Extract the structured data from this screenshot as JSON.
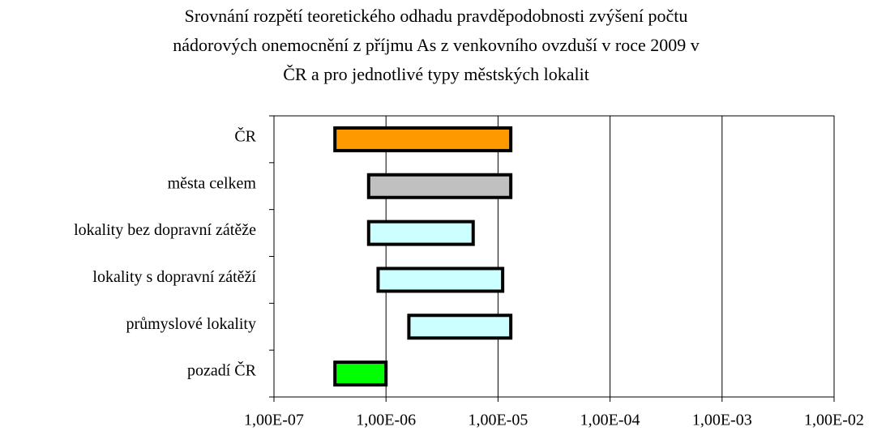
{
  "chart_data": {
    "type": "range-bar",
    "title": [
      "Srovnání rozpětí teoretického odhadu pravděpodobnosti zvýšení počtu",
      "nádorových onemocnění z příjmu  As z venkovního ovzduší v roce 2009 v",
      "ČR a pro jednotlivé typy městských lokalit"
    ],
    "categories": [
      "ČR",
      "města celkem",
      "lokality bez dopravní zátěže",
      "lokality s dopravní zátěží",
      "průmyslové lokality",
      "pozadí ČR"
    ],
    "low": [
      3.5e-07,
      7e-07,
      7e-07,
      8.5e-07,
      1.6e-06,
      3.5e-07
    ],
    "high": [
      1.3e-05,
      1.3e-05,
      6e-06,
      1.1e-05,
      1.3e-05,
      1e-06
    ],
    "colors": [
      "#ff9900",
      "#c0c0c0",
      "#ccffff",
      "#ccffff",
      "#ccffff",
      "#00ff00"
    ],
    "xscale": "log",
    "xlim": [
      1e-07,
      0.01
    ],
    "xticks": [
      {
        "value": 1e-07,
        "label": "1,00E-07"
      },
      {
        "value": 1e-06,
        "label": "1,00E-06"
      },
      {
        "value": 1e-05,
        "label": "1,00E-05"
      },
      {
        "value": 0.0001,
        "label": "1,00E-04"
      },
      {
        "value": 0.001,
        "label": "1,00E-03"
      },
      {
        "value": 0.01,
        "label": "1,00E-02"
      }
    ],
    "grid": true
  }
}
